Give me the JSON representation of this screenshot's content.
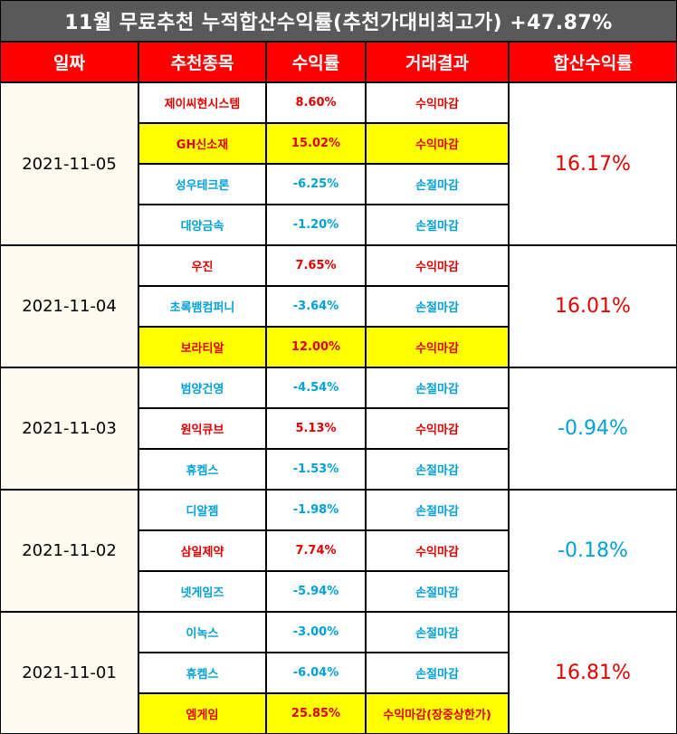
{
  "title": "11월 무료추천 누적합산수익률(추천가대비최고가) +47.87%",
  "headers": [
    "일짜",
    "추천종목",
    "수익률",
    "거래결과",
    "합산수익률"
  ],
  "colors": {
    "header_bg": "#ff0000",
    "title_bg": "#595959",
    "positive": "#e00000",
    "negative": "#00a0d8",
    "highlight": "#ffff00"
  },
  "groups": [
    {
      "date": "2021-11-05",
      "total": "16.17%",
      "total_sign": "pos",
      "rows": [
        {
          "name": "제이씨현시스템",
          "rate": "8.60%",
          "result": "수익마감",
          "sign": "pos",
          "highlight": false
        },
        {
          "name": "GH신소재",
          "rate": "15.02%",
          "result": "수익마감",
          "sign": "pos",
          "highlight": true
        },
        {
          "name": "성우테크론",
          "rate": "-6.25%",
          "result": "손절마감",
          "sign": "neg",
          "highlight": false
        },
        {
          "name": "대양금속",
          "rate": "-1.20%",
          "result": "손절마감",
          "sign": "neg",
          "highlight": false
        }
      ]
    },
    {
      "date": "2021-11-04",
      "total": "16.01%",
      "total_sign": "pos",
      "rows": [
        {
          "name": "우진",
          "rate": "7.65%",
          "result": "수익마감",
          "sign": "pos",
          "highlight": false
        },
        {
          "name": "초록뱀컴퍼니",
          "rate": "-3.64%",
          "result": "손절마감",
          "sign": "neg",
          "highlight": false
        },
        {
          "name": "보라티알",
          "rate": "12.00%",
          "result": "수익마감",
          "sign": "pos",
          "highlight": true
        }
      ]
    },
    {
      "date": "2021-11-03",
      "total": "-0.94%",
      "total_sign": "neg",
      "rows": [
        {
          "name": "범양건영",
          "rate": "-4.54%",
          "result": "손절마감",
          "sign": "neg",
          "highlight": false
        },
        {
          "name": "원익큐브",
          "rate": "5.13%",
          "result": "수익마감",
          "sign": "pos",
          "highlight": false
        },
        {
          "name": "휴켐스",
          "rate": "-1.53%",
          "result": "손절마감",
          "sign": "neg",
          "highlight": false
        }
      ]
    },
    {
      "date": "2021-11-02",
      "total": "-0.18%",
      "total_sign": "neg",
      "rows": [
        {
          "name": "디알젬",
          "rate": "-1.98%",
          "result": "손절마감",
          "sign": "neg",
          "highlight": false
        },
        {
          "name": "삼일제약",
          "rate": "7.74%",
          "result": "수익마감",
          "sign": "pos",
          "highlight": false
        },
        {
          "name": "넷게임즈",
          "rate": "-5.94%",
          "result": "손절마감",
          "sign": "neg",
          "highlight": false
        }
      ]
    },
    {
      "date": "2021-11-01",
      "total": "16.81%",
      "total_sign": "pos",
      "rows": [
        {
          "name": "이녹스",
          "rate": "-3.00%",
          "result": "손절마감",
          "sign": "neg",
          "highlight": false
        },
        {
          "name": "휴켐스",
          "rate": "-6.04%",
          "result": "손절마감",
          "sign": "neg",
          "highlight": false
        },
        {
          "name": "엠게임",
          "rate": "25.85%",
          "result": "수익마감(장중상한가)",
          "sign": "pos",
          "highlight": true
        }
      ]
    }
  ]
}
